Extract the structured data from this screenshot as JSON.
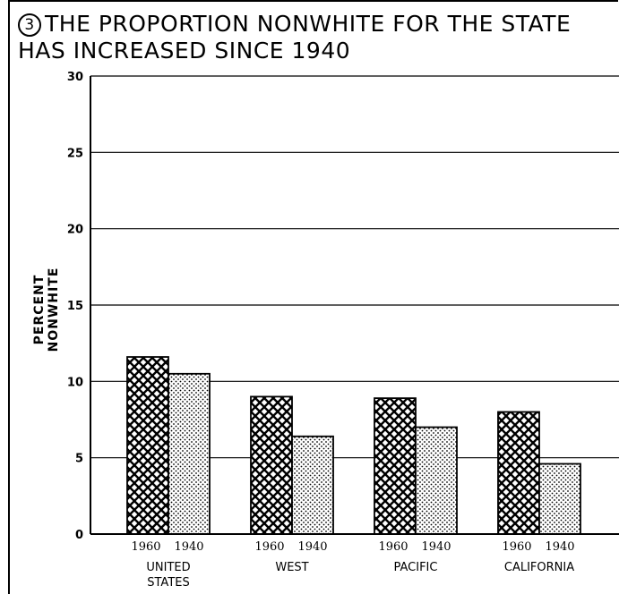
{
  "title": {
    "number": "3",
    "line1": "THE PROPORTION NONWHITE FOR THE STATE",
    "line2": "HAS INCREASED SINCE 1940"
  },
  "chart_data": {
    "type": "bar",
    "title": "THE PROPORTION NONWHITE FOR THE STATE HAS INCREASED SINCE 1940",
    "xlabel": "",
    "ylabel": "PERCENT NONWHITE",
    "ylim": [
      0,
      30
    ],
    "yticks": [
      0,
      5,
      10,
      15,
      20,
      25,
      30
    ],
    "grid": true,
    "categories": [
      [
        "UNITED",
        "STATES"
      ],
      [
        "WEST"
      ],
      [
        "PACIFIC"
      ],
      [
        "CALIFORNIA"
      ]
    ],
    "series": [
      {
        "name": "1960",
        "pattern": "crosshatch",
        "values": [
          11.6,
          9.0,
          8.9,
          8.0
        ]
      },
      {
        "name": "1940",
        "pattern": "dots",
        "values": [
          10.5,
          6.4,
          7.0,
          4.6
        ]
      }
    ]
  }
}
